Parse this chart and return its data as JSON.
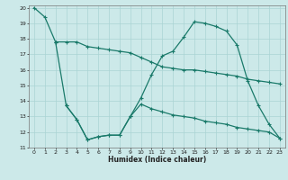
{
  "xlabel": "Humidex (Indice chaleur)",
  "background_color": "#cce9e9",
  "grid_color": "#aad4d4",
  "line_color": "#1a7a6a",
  "xlim": [
    -0.5,
    23.5
  ],
  "ylim": [
    11,
    20
  ],
  "xticks": [
    0,
    1,
    2,
    3,
    4,
    5,
    6,
    7,
    8,
    9,
    10,
    11,
    12,
    13,
    14,
    15,
    16,
    17,
    18,
    19,
    20,
    21,
    22,
    23
  ],
  "yticks": [
    11,
    12,
    13,
    14,
    15,
    16,
    17,
    18,
    19,
    20
  ],
  "line1_x": [
    0,
    1,
    2
  ],
  "line1_y": [
    20,
    19.4,
    17.8
  ],
  "line2_x": [
    2,
    3,
    4,
    5,
    6,
    7,
    8,
    9,
    10,
    11,
    12,
    13,
    14,
    15,
    16,
    17,
    18,
    19,
    20,
    21,
    22,
    23
  ],
  "line2_y": [
    17.8,
    13.7,
    12.8,
    11.5,
    11.7,
    11.8,
    11.8,
    13.0,
    14.2,
    15.7,
    16.9,
    17.2,
    18.1,
    19.1,
    19.0,
    18.8,
    18.5,
    17.6,
    15.3,
    13.7,
    12.5,
    11.6
  ],
  "line3_x": [
    2,
    3,
    4,
    5,
    6,
    7,
    8,
    9,
    10,
    11,
    12,
    13,
    14,
    15,
    16,
    17,
    18,
    19,
    20,
    21,
    22,
    23
  ],
  "line3_y": [
    17.8,
    17.8,
    17.8,
    17.5,
    17.4,
    17.3,
    17.2,
    17.1,
    16.8,
    16.5,
    16.2,
    16.1,
    16.0,
    16.0,
    15.9,
    15.8,
    15.7,
    15.6,
    15.4,
    15.3,
    15.2,
    15.1
  ],
  "line4_x": [
    3,
    4,
    5,
    6,
    7,
    8,
    9,
    10,
    11,
    12,
    13,
    14,
    15,
    16,
    17,
    18,
    19,
    20,
    21,
    22,
    23
  ],
  "line4_y": [
    13.7,
    12.8,
    11.5,
    11.7,
    11.8,
    11.8,
    13.0,
    13.8,
    13.5,
    13.3,
    13.1,
    13.0,
    12.9,
    12.7,
    12.6,
    12.5,
    12.3,
    12.2,
    12.1,
    12.0,
    11.6
  ]
}
